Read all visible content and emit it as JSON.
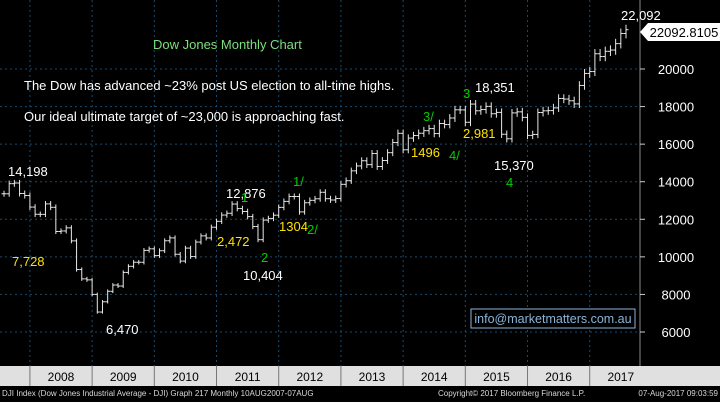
{
  "chart_data": {
    "type": "ohlc",
    "title": "Dow Jones Monthly Chart",
    "notes": [
      "The Dow has advanced ~23% post US election to all-time highs.",
      "Our ideal ultimate target of ~23,000 is approaching fast."
    ],
    "watermark": "info@marketmatters.com.au",
    "last_price_tag": "22092.8105",
    "y_ticks": [
      6000,
      8000,
      10000,
      12000,
      14000,
      16000,
      18000,
      20000
    ],
    "y_tick_labels": [
      "6000",
      "8000",
      "10000",
      "12000",
      "14000",
      "16000",
      "18000",
      "20000"
    ],
    "ylim": [
      5000,
      23000
    ],
    "x_labels": [
      "2008",
      "2009",
      "2010",
      "2011",
      "2012",
      "2013",
      "2014",
      "2015",
      "2016",
      "2017"
    ],
    "x_start": "2007-08",
    "x_end": "2017-08",
    "price_labels": [
      {
        "text": "14,198",
        "value": 14198,
        "date": "2007.83"
      },
      {
        "text": "7,728",
        "value": 7728,
        "date": "2008.9"
      },
      {
        "text": "6,470",
        "value": 6470,
        "date": "2009.17"
      },
      {
        "text": "12,876",
        "value": 12876,
        "date": "2011.33"
      },
      {
        "text": "2,472",
        "value": 2472,
        "date": "2011.0"
      },
      {
        "text": "10,404",
        "value": 10404,
        "date": "2011.75"
      },
      {
        "text": "1304",
        "value": 1304,
        "date": "2012.0"
      },
      {
        "text": "1496",
        "value": 1496,
        "date": "2014.0"
      },
      {
        "text": "2,981",
        "value": 2981,
        "date": "2014.9"
      },
      {
        "text": "18,351",
        "value": 18351,
        "date": "2015.4"
      },
      {
        "text": "15,370",
        "value": 15370,
        "date": "2015.67"
      },
      {
        "text": "22,092",
        "value": 22092,
        "date": "2017.58"
      }
    ],
    "wave_labels": [
      "1",
      "2",
      "1/",
      "2/",
      "3/",
      "4/",
      "3",
      "4"
    ],
    "colors": {
      "bars": "#e8e8e8",
      "gridline": "#1a4a6e",
      "title": "#7ddf7d",
      "note_text": "#ffffff",
      "yellow_labels": "#ffe000",
      "wave_green": "#00cc00",
      "white_labels": "#ffffff",
      "axis_bg": "#e0e0e0",
      "axis_text": "#000000",
      "plot_bg": "#000000",
      "watermark_border": "#8ab4d8",
      "watermark_text": "#8ab4d8"
    },
    "series": [
      {
        "date": "2007-08",
        "close": 13358
      },
      {
        "date": "2007-09",
        "close": 13896
      },
      {
        "date": "2007-10",
        "close": 13930
      },
      {
        "date": "2007-11",
        "close": 13372
      },
      {
        "date": "2007-12",
        "close": 13265
      },
      {
        "date": "2008-01",
        "close": 12650
      },
      {
        "date": "2008-02",
        "close": 12266
      },
      {
        "date": "2008-03",
        "close": 12262
      },
      {
        "date": "2008-04",
        "close": 12820
      },
      {
        "date": "2008-05",
        "close": 12638
      },
      {
        "date": "2008-06",
        "close": 11350
      },
      {
        "date": "2008-07",
        "close": 11378
      },
      {
        "date": "2008-08",
        "close": 11544
      },
      {
        "date": "2008-09",
        "close": 10851
      },
      {
        "date": "2008-10",
        "close": 9325
      },
      {
        "date": "2008-11",
        "close": 8829
      },
      {
        "date": "2008-12",
        "close": 8776
      },
      {
        "date": "2009-01",
        "close": 8001
      },
      {
        "date": "2009-02",
        "close": 7063
      },
      {
        "date": "2009-03",
        "close": 7609
      },
      {
        "date": "2009-04",
        "close": 8168
      },
      {
        "date": "2009-05",
        "close": 8500
      },
      {
        "date": "2009-06",
        "close": 8447
      },
      {
        "date": "2009-07",
        "close": 9172
      },
      {
        "date": "2009-08",
        "close": 9496
      },
      {
        "date": "2009-09",
        "close": 9712
      },
      {
        "date": "2009-10",
        "close": 9713
      },
      {
        "date": "2009-11",
        "close": 10344
      },
      {
        "date": "2009-12",
        "close": 10428
      },
      {
        "date": "2010-01",
        "close": 10067
      },
      {
        "date": "2010-02",
        "close": 10325
      },
      {
        "date": "2010-03",
        "close": 10857
      },
      {
        "date": "2010-04",
        "close": 11009
      },
      {
        "date": "2010-05",
        "close": 10137
      },
      {
        "date": "2010-06",
        "close": 9774
      },
      {
        "date": "2010-07",
        "close": 10466
      },
      {
        "date": "2010-08",
        "close": 10015
      },
      {
        "date": "2010-09",
        "close": 10788
      },
      {
        "date": "2010-10",
        "close": 11118
      },
      {
        "date": "2010-11",
        "close": 11006
      },
      {
        "date": "2010-12",
        "close": 11578
      },
      {
        "date": "2011-01",
        "close": 11892
      },
      {
        "date": "2011-02",
        "close": 12226
      },
      {
        "date": "2011-03",
        "close": 12320
      },
      {
        "date": "2011-04",
        "close": 12811
      },
      {
        "date": "2011-05",
        "close": 12570
      },
      {
        "date": "2011-06",
        "close": 12414
      },
      {
        "date": "2011-07",
        "close": 12143
      },
      {
        "date": "2011-08",
        "close": 11614
      },
      {
        "date": "2011-09",
        "close": 10913
      },
      {
        "date": "2011-10",
        "close": 11955
      },
      {
        "date": "2011-11",
        "close": 12046
      },
      {
        "date": "2011-12",
        "close": 12218
      },
      {
        "date": "2012-01",
        "close": 12633
      },
      {
        "date": "2012-02",
        "close": 12952
      },
      {
        "date": "2012-03",
        "close": 13212
      },
      {
        "date": "2012-04",
        "close": 13214
      },
      {
        "date": "2012-05",
        "close": 12393
      },
      {
        "date": "2012-06",
        "close": 12880
      },
      {
        "date": "2012-07",
        "close": 13009
      },
      {
        "date": "2012-08",
        "close": 13091
      },
      {
        "date": "2012-09",
        "close": 13437
      },
      {
        "date": "2012-10",
        "close": 13096
      },
      {
        "date": "2012-11",
        "close": 13026
      },
      {
        "date": "2012-12",
        "close": 13104
      },
      {
        "date": "2013-01",
        "close": 13861
      },
      {
        "date": "2013-02",
        "close": 14054
      },
      {
        "date": "2013-03",
        "close": 14579
      },
      {
        "date": "2013-04",
        "close": 14840
      },
      {
        "date": "2013-05",
        "close": 15116
      },
      {
        "date": "2013-06",
        "close": 14910
      },
      {
        "date": "2013-07",
        "close": 15500
      },
      {
        "date": "2013-08",
        "close": 14810
      },
      {
        "date": "2013-09",
        "close": 15130
      },
      {
        "date": "2013-10",
        "close": 15546
      },
      {
        "date": "2013-11",
        "close": 16086
      },
      {
        "date": "2013-12",
        "close": 16577
      },
      {
        "date": "2014-01",
        "close": 15699
      },
      {
        "date": "2014-02",
        "close": 16322
      },
      {
        "date": "2014-03",
        "close": 16458
      },
      {
        "date": "2014-04",
        "close": 16581
      },
      {
        "date": "2014-05",
        "close": 16717
      },
      {
        "date": "2014-06",
        "close": 16827
      },
      {
        "date": "2014-07",
        "close": 16563
      },
      {
        "date": "2014-08",
        "close": 17098
      },
      {
        "date": "2014-09",
        "close": 17043
      },
      {
        "date": "2014-10",
        "close": 17391
      },
      {
        "date": "2014-11",
        "close": 17828
      },
      {
        "date": "2014-12",
        "close": 17823
      },
      {
        "date": "2015-01",
        "close": 17165
      },
      {
        "date": "2015-02",
        "close": 18133
      },
      {
        "date": "2015-03",
        "close": 17776
      },
      {
        "date": "2015-04",
        "close": 17841
      },
      {
        "date": "2015-05",
        "close": 18011
      },
      {
        "date": "2015-06",
        "close": 17620
      },
      {
        "date": "2015-07",
        "close": 17690
      },
      {
        "date": "2015-08",
        "close": 16528
      },
      {
        "date": "2015-09",
        "close": 16285
      },
      {
        "date": "2015-10",
        "close": 17664
      },
      {
        "date": "2015-11",
        "close": 17720
      },
      {
        "date": "2015-12",
        "close": 17425
      },
      {
        "date": "2016-01",
        "close": 16466
      },
      {
        "date": "2016-02",
        "close": 16517
      },
      {
        "date": "2016-03",
        "close": 17685
      },
      {
        "date": "2016-04",
        "close": 17774
      },
      {
        "date": "2016-05",
        "close": 17787
      },
      {
        "date": "2016-06",
        "close": 17930
      },
      {
        "date": "2016-07",
        "close": 18432
      },
      {
        "date": "2016-08",
        "close": 18401
      },
      {
        "date": "2016-09",
        "close": 18308
      },
      {
        "date": "2016-10",
        "close": 18142
      },
      {
        "date": "2016-11",
        "close": 19124
      },
      {
        "date": "2016-12",
        "close": 19763
      },
      {
        "date": "2017-01",
        "close": 19864
      },
      {
        "date": "2017-02",
        "close": 20812
      },
      {
        "date": "2017-03",
        "close": 20663
      },
      {
        "date": "2017-04",
        "close": 20941
      },
      {
        "date": "2017-05",
        "close": 21009
      },
      {
        "date": "2017-06",
        "close": 21350
      },
      {
        "date": "2017-07",
        "close": 21891
      },
      {
        "date": "2017-08",
        "close": 22092
      }
    ]
  },
  "footer": {
    "left": "DJI Index (Dow Jones Industrial Average - DJI) Graph 217  Monthly 10AUG2007-07AUG",
    "mid": "Copyright© 2017 Bloomberg Finance L.P.",
    "right": "07-Aug-2017 09:03:59"
  }
}
